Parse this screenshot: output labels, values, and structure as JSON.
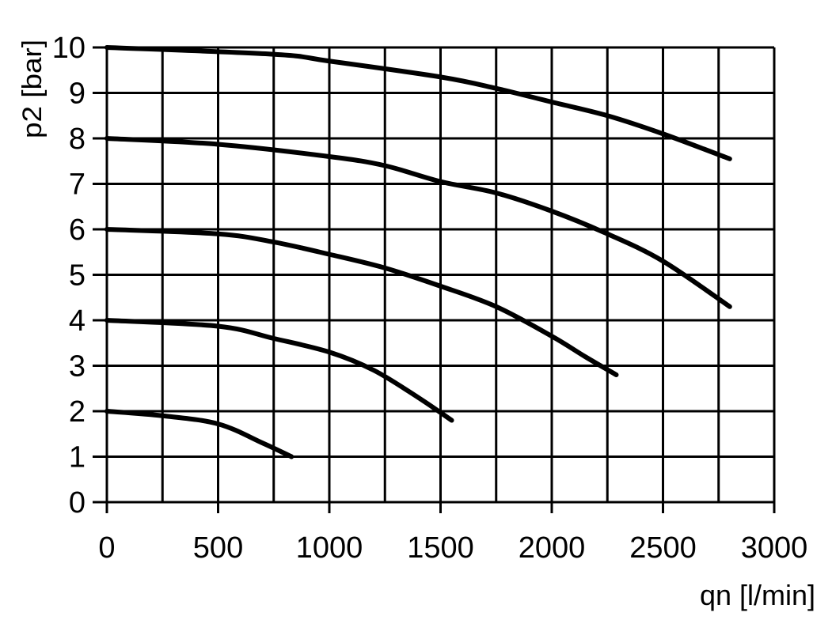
{
  "chart_data": {
    "type": "line",
    "title": "",
    "xlabel": "qn [l/min]",
    "ylabel": "p2 [bar]",
    "xlim": [
      0,
      3000
    ],
    "ylim": [
      0,
      10
    ],
    "x_ticks": [
      0,
      500,
      1000,
      1500,
      2000,
      2500,
      3000
    ],
    "x_ticks_labels": [
      "0",
      "500",
      "1000",
      "1500",
      "2000",
      "2500",
      "3000"
    ],
    "x_minor_grid_step": 250,
    "y_ticks": [
      0,
      1,
      2,
      3,
      4,
      5,
      6,
      7,
      8,
      9,
      10
    ],
    "y_ticks_labels": [
      "0",
      "1",
      "2",
      "3",
      "4",
      "5",
      "6",
      "7",
      "8",
      "9",
      "10"
    ],
    "grid": true,
    "line_color": "#000000",
    "series": [
      {
        "x": [
          0,
          250,
          500,
          700,
          830
        ],
        "y": [
          2,
          1.9,
          1.72,
          1.3,
          1.0
        ]
      },
      {
        "x": [
          0,
          500,
          750,
          1000,
          1200,
          1400,
          1550
        ],
        "y": [
          4,
          3.87,
          3.6,
          3.3,
          2.9,
          2.3,
          1.8
        ]
      },
      {
        "x": [
          0,
          500,
          750,
          1000,
          1250,
          1500,
          1750,
          2000,
          2150,
          2290
        ],
        "y": [
          6,
          5.9,
          5.72,
          5.45,
          5.15,
          4.75,
          4.3,
          3.65,
          3.2,
          2.8
        ]
      },
      {
        "x": [
          0,
          500,
          1000,
          1250,
          1500,
          1750,
          2000,
          2250,
          2500,
          2800
        ],
        "y": [
          8,
          7.87,
          7.6,
          7.4,
          7.05,
          6.8,
          6.4,
          5.9,
          5.3,
          4.3
        ]
      },
      {
        "x": [
          0,
          750,
          1000,
          1500,
          1750,
          2000,
          2250,
          2500,
          2800
        ],
        "y": [
          10,
          9.85,
          9.7,
          9.35,
          9.1,
          8.8,
          8.5,
          8.1,
          7.55
        ]
      }
    ]
  }
}
